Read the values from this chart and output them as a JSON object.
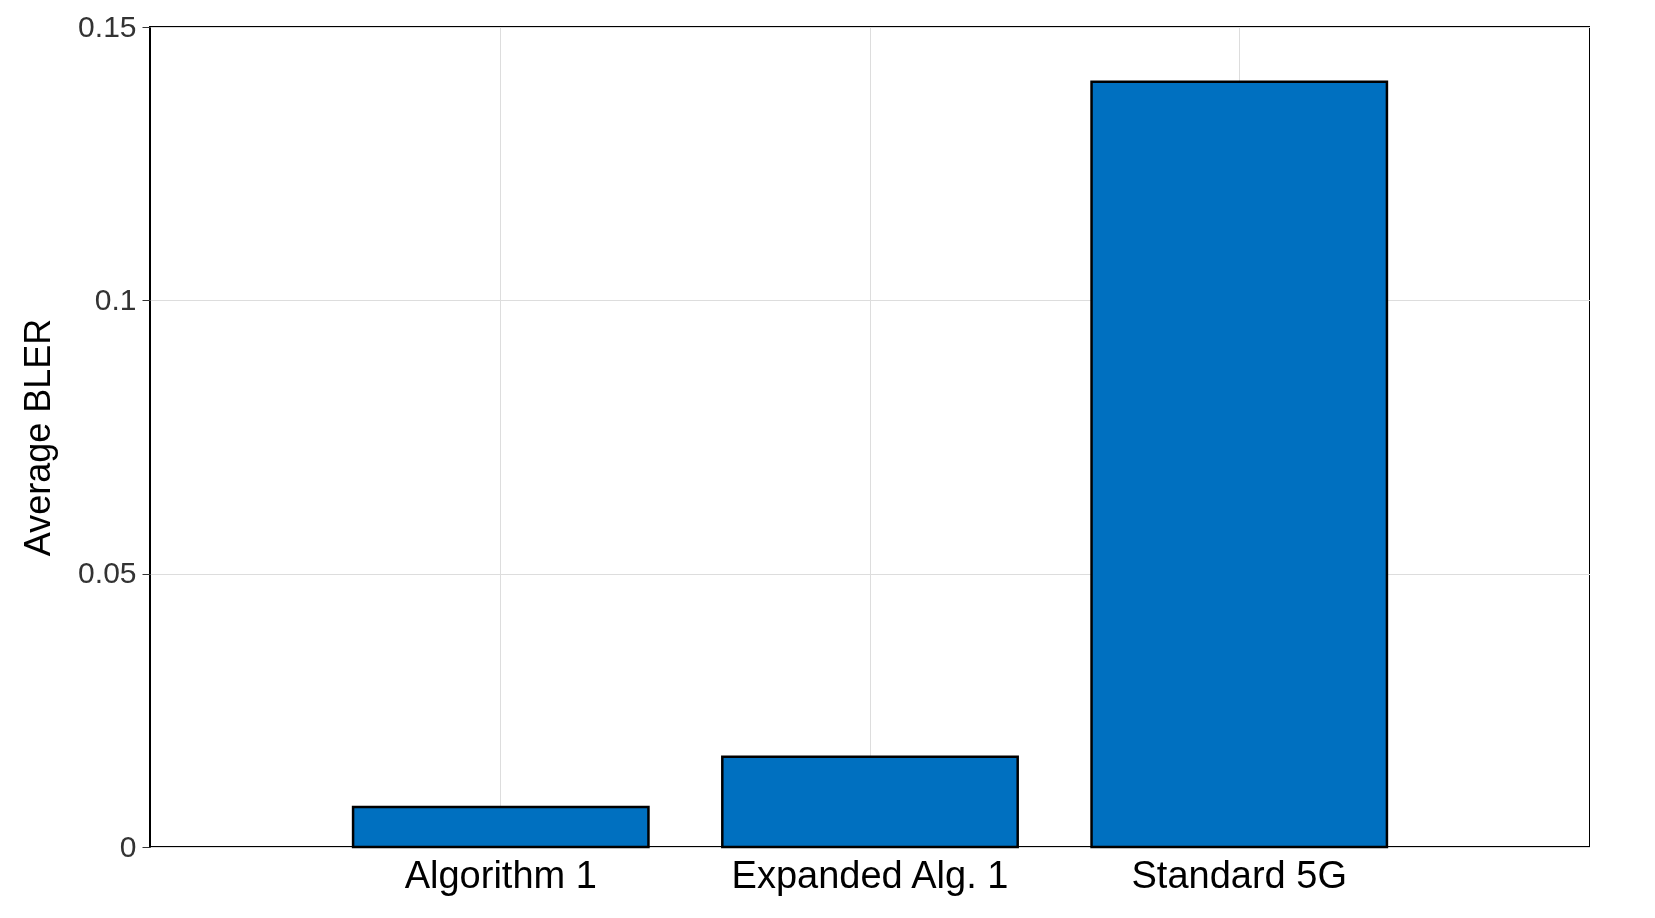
{
  "chart_data": {
    "type": "bar",
    "ylabel": "Average BLER",
    "categories": [
      "Algorithm 1",
      "Expanded Alg. 1",
      "Standard 5G"
    ],
    "values": [
      0.0073,
      0.0165,
      0.14
    ],
    "color": "#0070c0",
    "ylim": [
      0,
      0.15
    ],
    "yticks": [
      0,
      0.05,
      0.1,
      0.15
    ],
    "grid": true
  }
}
